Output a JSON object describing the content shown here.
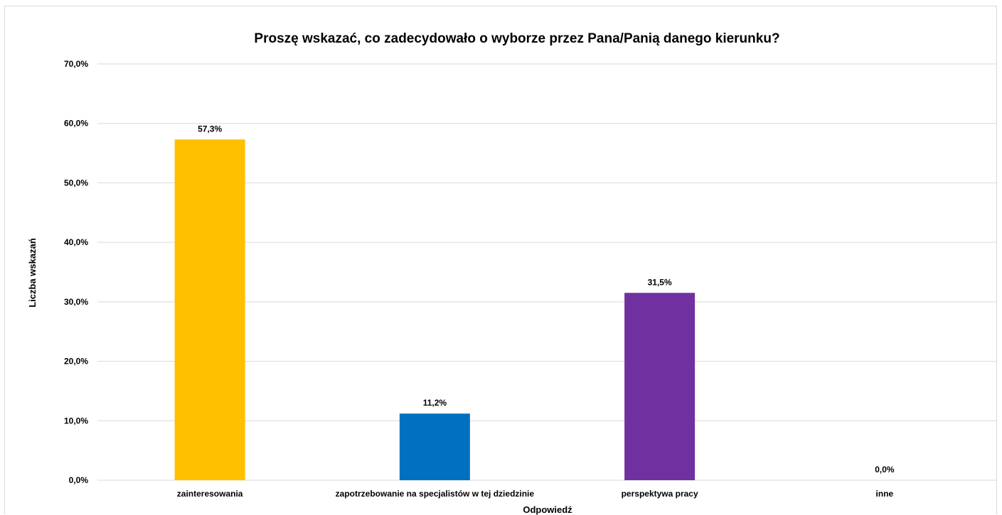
{
  "chart_data": {
    "type": "bar",
    "title": "Proszę wskazać, co zadecydowało o wyborze przez Pana/Panią  danego kierunku?",
    "xlabel": "Odpowiedź",
    "ylabel": "Liczba wskazań",
    "categories": [
      "zainteresowania",
      "zapotrzebowanie na specjalistów w tej dziedzinie",
      "perspektywa pracy",
      "inne"
    ],
    "values": [
      57.3,
      11.2,
      31.5,
      0.0
    ],
    "data_labels": [
      "57,3%",
      "11,2%",
      "31,5%",
      "0,0%"
    ],
    "bar_colors": [
      "#FFC000",
      "#0070C0",
      "#7030A0",
      "#A5A5A5"
    ],
    "ylim": [
      0,
      70
    ],
    "yticks": [
      0,
      10,
      20,
      30,
      40,
      50,
      60,
      70
    ],
    "ytick_labels": [
      "0,0%",
      "10,0%",
      "20,0%",
      "30,0%",
      "40,0%",
      "50,0%",
      "60,0%",
      "70,0%"
    ],
    "grid": true,
    "legend": "none"
  }
}
